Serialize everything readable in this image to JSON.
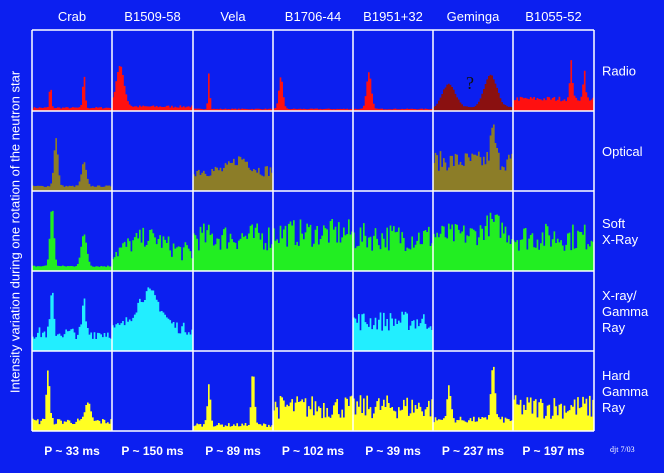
{
  "title_axis": "Intensity variation during one rotation of the neutron star",
  "columns": [
    {
      "name": "Crab",
      "period": "P ~ 33 ms"
    },
    {
      "name": "B1509-58",
      "period": "P ~ 150 ms"
    },
    {
      "name": "Vela",
      "period": "P ~ 89 ms"
    },
    {
      "name": "B1706-44",
      "period": "P ~ 102 ms"
    },
    {
      "name": "B1951+32",
      "period": "P ~ 39 ms"
    },
    {
      "name": "Geminga",
      "period": "P ~ 237 ms"
    },
    {
      "name": "B1055-52",
      "period": "P ~ 197 ms"
    }
  ],
  "rows": [
    {
      "label": [
        "Radio"
      ]
    },
    {
      "label": [
        "Optical"
      ]
    },
    {
      "label": [
        "Soft",
        "X-Ray"
      ]
    },
    {
      "label": [
        "X-ray/",
        "Gamma",
        "Ray"
      ]
    },
    {
      "label": [
        "Hard",
        "Gamma",
        "Ray"
      ]
    }
  ],
  "question_mark": "?",
  "credit": "djt 7/03"
}
